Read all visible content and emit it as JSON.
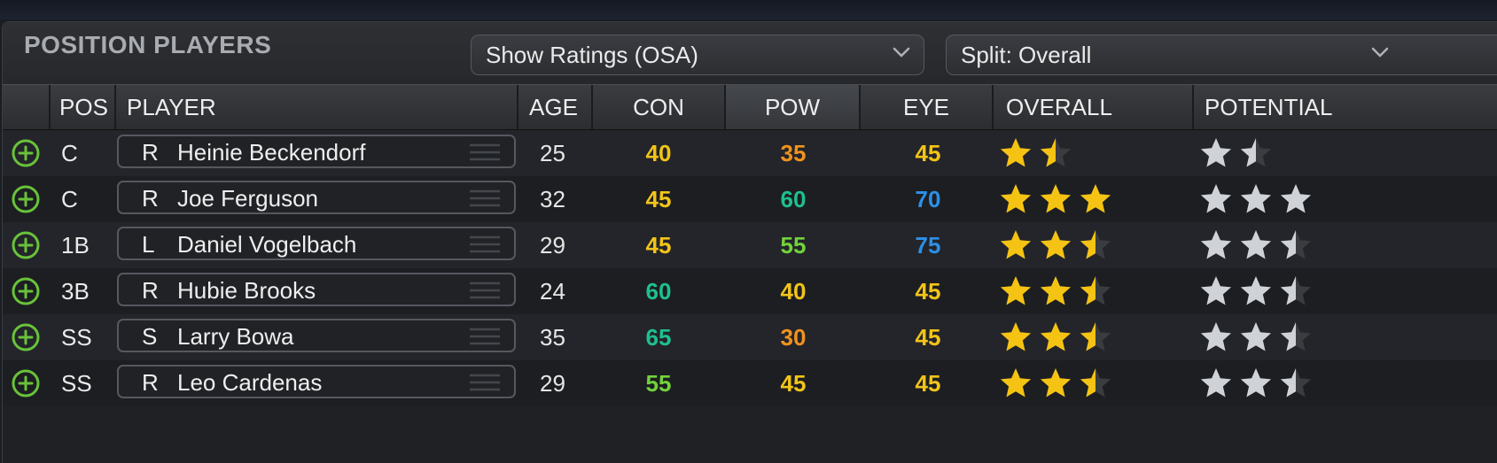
{
  "panel": {
    "title": "POSITION PLAYERS",
    "ratings_dropdown": "Show Ratings (OSA)",
    "split_dropdown": "Split: Overall"
  },
  "columns": {
    "pos": "POS",
    "player": "PLAYER",
    "age": "AGE",
    "con": "CON",
    "pow": "POW",
    "eye": "EYE",
    "overall": "OVERALL",
    "potential": "POTENTIAL"
  },
  "colors": {
    "rating_45": "#f2c418",
    "rating_40": "#f2c418",
    "rating_35": "#f0921e",
    "rating_30": "#f0921e",
    "rating_55": "#72d23b",
    "rating_60": "#1fbf8e",
    "rating_65": "#1fbf8e",
    "rating_70": "#2e8fe6",
    "rating_75": "#2e8fe6",
    "add_icon": "#69c23a",
    "gold_star": "#f5c313",
    "silver_star": "#cfd2d6"
  },
  "rows": [
    {
      "pos": "C",
      "bats": "R",
      "name": "Heinie Beckendorf",
      "age": "25",
      "con": "40",
      "pow": "35",
      "eye": "45",
      "overall": 1.5,
      "potential": 1.5
    },
    {
      "pos": "C",
      "bats": "R",
      "name": "Joe Ferguson",
      "age": "32",
      "con": "45",
      "pow": "60",
      "eye": "70",
      "overall": 3,
      "potential": 3
    },
    {
      "pos": "1B",
      "bats": "L",
      "name": "Daniel Vogelbach",
      "age": "29",
      "con": "45",
      "pow": "55",
      "eye": "75",
      "overall": 2.5,
      "potential": 2.5
    },
    {
      "pos": "3B",
      "bats": "R",
      "name": "Hubie Brooks",
      "age": "24",
      "con": "60",
      "pow": "40",
      "eye": "45",
      "overall": 2.5,
      "potential": 2.5
    },
    {
      "pos": "SS",
      "bats": "S",
      "name": "Larry Bowa",
      "age": "35",
      "con": "65",
      "pow": "30",
      "eye": "45",
      "overall": 2.5,
      "potential": 2.5
    },
    {
      "pos": "SS",
      "bats": "R",
      "name": "Leo Cardenas",
      "age": "29",
      "con": "55",
      "pow": "45",
      "eye": "45",
      "overall": 2.5,
      "potential": 2.5
    }
  ]
}
